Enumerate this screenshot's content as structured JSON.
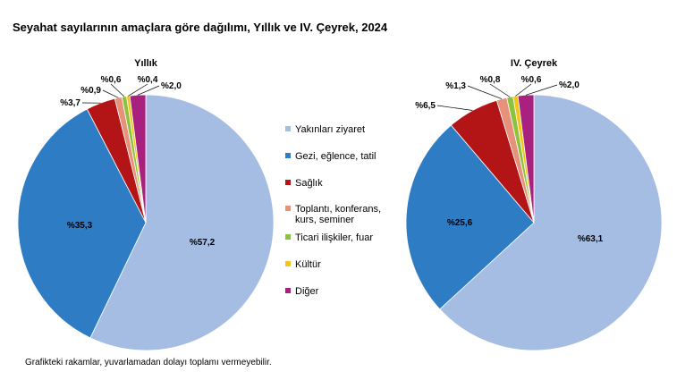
{
  "chart_data": {
    "title": "Seyahat sayılarının amaçlara göre dağılımı, Yıllık ve IV. Çeyrek, 2024",
    "footnote": "Grafikteki rakamlar, yuvarlamadan dolayı toplamı vermeyebilir.",
    "legend_position": "center",
    "categories": [
      {
        "name": "Yakınları ziyaret",
        "lines": [
          "Yakınları ziyaret"
        ],
        "color": "#a6bde3"
      },
      {
        "name": "Gezi, eğlence, tatil",
        "lines": [
          "Gezi, eğlence, tatil"
        ],
        "color": "#2e7cc4"
      },
      {
        "name": "Sağlık",
        "lines": [
          "Sağlık"
        ],
        "color": "#b31516"
      },
      {
        "name": "Toplantı, konferans, kurs, seminer",
        "lines": [
          "Toplantı, konferans,",
          "kurs, seminer"
        ],
        "color": "#e8917a"
      },
      {
        "name": "Ticari ilişkiler, fuar",
        "lines": [
          "Ticari ilişkiler, fuar"
        ],
        "color": "#8dc23f"
      },
      {
        "name": "Kültür",
        "lines": [
          "Kültür"
        ],
        "color": "#f5c419"
      },
      {
        "name": "Diğer",
        "lines": [
          "Diğer"
        ],
        "color": "#a8217f"
      }
    ],
    "charts": [
      {
        "type": "pie",
        "subtitle": "Yıllık",
        "values": [
          57.2,
          35.3,
          3.7,
          0.9,
          0.6,
          0.4,
          2.0
        ],
        "labels": [
          "%57,2",
          "%35,3",
          "%3,7",
          "%0,9",
          "%0,6",
          "%0,4",
          "%2,0"
        ]
      },
      {
        "type": "pie",
        "subtitle": "IV. Çeyrek",
        "values": [
          63.1,
          25.6,
          6.5,
          1.3,
          0.8,
          0.6,
          2.0
        ],
        "labels": [
          "%63,1",
          "%25,6",
          "%6,5",
          "%1,3",
          "%0,8",
          "%0,6",
          "%2,0"
        ]
      }
    ]
  }
}
